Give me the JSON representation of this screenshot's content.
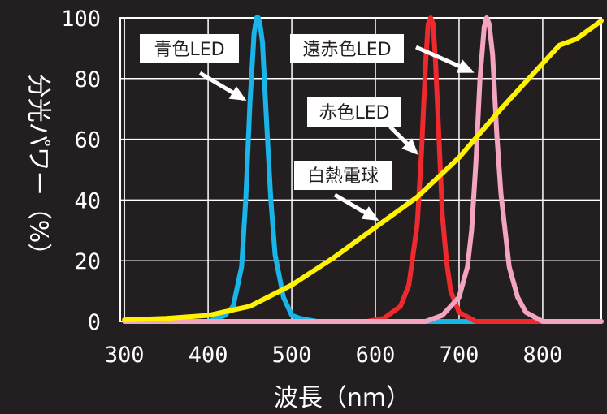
{
  "chart_data": {
    "type": "line",
    "title": "",
    "xlabel": "波長（nm）",
    "ylabel": "分光パワー（%）",
    "xlim": [
      295,
      870
    ],
    "ylim": [
      0,
      100
    ],
    "xticks": [
      300,
      400,
      500,
      600,
      700,
      800
    ],
    "yticks": [
      0,
      20,
      40,
      60,
      80,
      100
    ],
    "grid": true,
    "background": "#231f20",
    "series": [
      {
        "name": "青色LED",
        "color": "#1ab4e8",
        "x": [
          300,
          400,
          420,
          430,
          440,
          445,
          450,
          455,
          458,
          460,
          462,
          465,
          470,
          475,
          480,
          490,
          500,
          510,
          530,
          870
        ],
        "y": [
          0,
          0,
          2,
          5,
          18,
          40,
          72,
          95,
          100,
          100,
          98,
          92,
          65,
          40,
          22,
          8,
          2,
          1,
          0,
          0
        ]
      },
      {
        "name": "赤色LED",
        "color": "#ee2a2e",
        "x": [
          300,
          590,
          610,
          630,
          640,
          650,
          655,
          660,
          663,
          666,
          669,
          672,
          676,
          680,
          685,
          690,
          700,
          720,
          870
        ],
        "y": [
          0,
          0,
          1,
          5,
          12,
          32,
          55,
          85,
          98,
          100,
          98,
          85,
          60,
          35,
          20,
          10,
          3,
          0,
          0
        ]
      },
      {
        "name": "遠赤色LED",
        "color": "#f3a4c0",
        "x": [
          300,
          660,
          680,
          700,
          710,
          715,
          720,
          725,
          730,
          733,
          736,
          740,
          745,
          750,
          760,
          770,
          780,
          800,
          870
        ],
        "y": [
          0,
          0,
          2,
          8,
          18,
          30,
          52,
          80,
          97,
          100,
          98,
          88,
          62,
          42,
          18,
          8,
          3,
          0,
          0
        ]
      },
      {
        "name": "白熱電球",
        "color": "#fff200",
        "x": [
          300,
          350,
          400,
          450,
          500,
          550,
          600,
          650,
          700,
          750,
          800,
          820,
          840,
          860,
          870
        ],
        "y": [
          0.5,
          1,
          2,
          5,
          12,
          21,
          31,
          41,
          54,
          70,
          85,
          91,
          93,
          97,
          99
        ]
      }
    ],
    "annotations": [
      {
        "label": "青色LED",
        "target": "青色LED"
      },
      {
        "label": "遠赤色LED",
        "target": "遠赤色LED"
      },
      {
        "label": "赤色LED",
        "target": "赤色LED"
      },
      {
        "label": "白熱電球",
        "target": "白熱電球"
      }
    ]
  }
}
